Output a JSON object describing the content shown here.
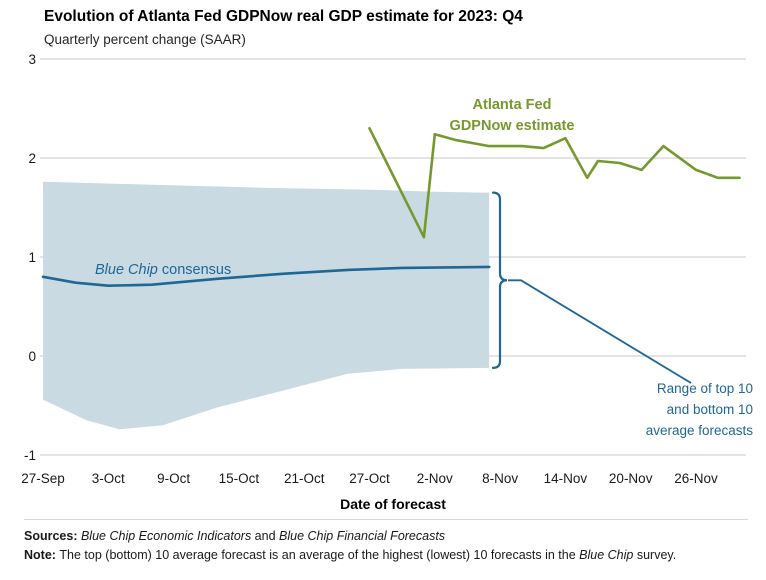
{
  "chart_data": {
    "type": "line",
    "title": "Evolution of Atlanta Fed GDPNow real GDP estimate for 2023: Q4",
    "subtitle": "Quarterly percent change (SAAR)",
    "xlabel": "Date of forecast",
    "ylim": [
      -1,
      3
    ],
    "yticks": [
      3,
      2,
      1,
      0,
      -1
    ],
    "grid": true,
    "x_unit": "days since 27-Sep-2023",
    "x_range_days": [
      0,
      64
    ],
    "xticks": [
      {
        "day": 0,
        "label": "27-Sep"
      },
      {
        "day": 6,
        "label": "3-Oct"
      },
      {
        "day": 12,
        "label": "9-Oct"
      },
      {
        "day": 18,
        "label": "15-Oct"
      },
      {
        "day": 24,
        "label": "21-Oct"
      },
      {
        "day": 30,
        "label": "27-Oct"
      },
      {
        "day": 36,
        "label": "2-Nov"
      },
      {
        "day": 42,
        "label": "8-Nov"
      },
      {
        "day": 48,
        "label": "14-Nov"
      },
      {
        "day": 54,
        "label": "20-Nov"
      },
      {
        "day": 60,
        "label": "26-Nov"
      }
    ],
    "series": [
      {
        "id": "gdpnow",
        "name": "Atlanta Fed GDPNow estimate",
        "color": "#76992e",
        "label_lines": [
          "Atlanta Fed",
          "GDPNow estimate"
        ],
        "points": [
          [
            30,
            2.3
          ],
          [
            35,
            1.2
          ],
          [
            36,
            2.24
          ],
          [
            38,
            2.18
          ],
          [
            41,
            2.12
          ],
          [
            44,
            2.12
          ],
          [
            46,
            2.1
          ],
          [
            48,
            2.2
          ],
          [
            50,
            1.8
          ],
          [
            51,
            1.97
          ],
          [
            53,
            1.95
          ],
          [
            55,
            1.88
          ],
          [
            57,
            2.12
          ],
          [
            60,
            1.88
          ],
          [
            62,
            1.8
          ],
          [
            64,
            1.8
          ]
        ]
      },
      {
        "id": "blue-chip",
        "name": "Blue Chip consensus",
        "color": "#1f6795",
        "label_italic": "Blue Chip",
        "label_rest": " consensus",
        "points": [
          [
            0,
            0.8
          ],
          [
            3,
            0.74
          ],
          [
            6,
            0.71
          ],
          [
            10,
            0.72
          ],
          [
            16,
            0.78
          ],
          [
            22,
            0.83
          ],
          [
            28,
            0.87
          ],
          [
            33,
            0.89
          ],
          [
            41,
            0.9
          ]
        ]
      }
    ],
    "band": {
      "id": "forecast-range",
      "name": "Range of top 10 and bottom 10 average forecasts",
      "color": "#c9dae3",
      "label_lines": [
        "Range of top 10",
        "and bottom 10",
        "average forecasts"
      ],
      "label_color": "#1f6795",
      "top": [
        [
          0,
          1.76
        ],
        [
          10,
          1.73
        ],
        [
          20,
          1.7
        ],
        [
          30,
          1.68
        ],
        [
          36,
          1.66
        ],
        [
          41,
          1.65
        ]
      ],
      "bottom": [
        [
          0,
          -0.44
        ],
        [
          4,
          -0.65
        ],
        [
          7,
          -0.74
        ],
        [
          11,
          -0.7
        ],
        [
          16,
          -0.52
        ],
        [
          22,
          -0.35
        ],
        [
          28,
          -0.18
        ],
        [
          33,
          -0.13
        ],
        [
          41,
          -0.12
        ]
      ]
    }
  },
  "footer": {
    "sources_prefix": "Sources: ",
    "sources_italic1": "Blue Chip Economic Indicators",
    "sources_mid": " and ",
    "sources_italic2": "Blue Chip Financial Forecasts",
    "note_prefix": "Note: ",
    "note_text": "The top (bottom) 10 average forecast is an average of the highest (lowest) 10 forecasts in the ",
    "note_italic": "Blue Chip",
    "note_tail": " survey."
  }
}
